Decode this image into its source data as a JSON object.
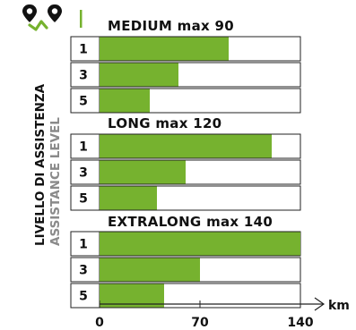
{
  "chart_data": {
    "type": "bar",
    "orientation": "horizontal",
    "accent_color": "#76b22f",
    "ylabel": "LIVELLO DI ASSISTENZA",
    "ylabel_secondary": "ASSISTANCE LEVEL",
    "xunit": "km",
    "xlim": [
      0,
      140
    ],
    "xticks": [
      "0",
      "70",
      "140"
    ],
    "panels": [
      {
        "title": "MEDIUM max 90",
        "categories": [
          "1",
          "3",
          "5"
        ],
        "values": [
          90,
          55,
          35
        ]
      },
      {
        "title": "LONG max 120",
        "categories": [
          "1",
          "3",
          "5"
        ],
        "values": [
          120,
          60,
          40
        ]
      },
      {
        "title": "EXTRALONG max 140",
        "categories": [
          "1",
          "3",
          "5"
        ],
        "values": [
          140,
          70,
          45
        ]
      }
    ]
  },
  "header": {
    "icon": "map-pin-route-icon"
  }
}
